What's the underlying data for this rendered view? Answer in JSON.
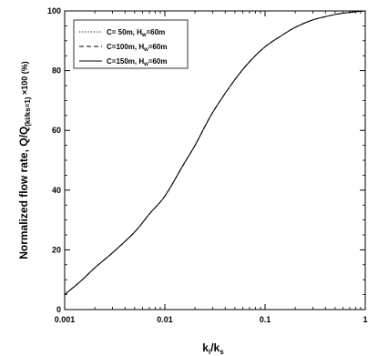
{
  "chart_data": {
    "type": "line",
    "xscale": "log",
    "xlim": [
      0.001,
      1
    ],
    "ylim": [
      0,
      100
    ],
    "xticks": [
      0.001,
      0.01,
      0.1,
      1
    ],
    "xtick_labels": [
      "0.001",
      "0.01",
      "0.1",
      "1"
    ],
    "yticks": [
      0,
      20,
      40,
      60,
      80,
      100
    ],
    "ytick_labels": [
      "0",
      "20",
      "40",
      "60",
      "80",
      "100"
    ],
    "xlabel": {
      "main": "k",
      "sub1": "i",
      "mid": "/k",
      "sub2": "s"
    },
    "ylabel": {
      "main": "Normalized flow rate, Q/Q",
      "sub": "(ki/ks=1)",
      "tail": " ×100 (%)"
    },
    "legend_position": "top-left",
    "series": [
      {
        "name": {
          "pre": "C= 50m, H",
          "sub": "w",
          "post": "=60m"
        },
        "line_style": "dotted",
        "x": [
          0.001,
          0.0015,
          0.002,
          0.003,
          0.005,
          0.007,
          0.01,
          0.015,
          0.02,
          0.03,
          0.05,
          0.07,
          0.1,
          0.15,
          0.2,
          0.3,
          0.5,
          0.7,
          1
        ],
        "y": [
          5,
          10,
          14,
          19,
          26,
          32,
          38,
          48,
          55,
          66,
          77,
          83,
          88,
          92,
          94.5,
          97,
          98.8,
          99.5,
          100
        ]
      },
      {
        "name": {
          "pre": "C=100m, H",
          "sub": "w",
          "post": "=60m"
        },
        "line_style": "dashed",
        "x": [
          0.001,
          0.0015,
          0.002,
          0.003,
          0.005,
          0.007,
          0.01,
          0.015,
          0.02,
          0.03,
          0.05,
          0.07,
          0.1,
          0.15,
          0.2,
          0.3,
          0.5,
          0.7,
          1
        ],
        "y": [
          5,
          10,
          14,
          19,
          26,
          32,
          38,
          48,
          55,
          66,
          77,
          83,
          88,
          92,
          94.5,
          97,
          98.8,
          99.5,
          100
        ]
      },
      {
        "name": {
          "pre": "C=150m, H",
          "sub": "w",
          "post": "=60m"
        },
        "line_style": "solid",
        "x": [
          0.001,
          0.0015,
          0.002,
          0.003,
          0.005,
          0.007,
          0.01,
          0.015,
          0.02,
          0.03,
          0.05,
          0.07,
          0.1,
          0.15,
          0.2,
          0.3,
          0.5,
          0.7,
          1
        ],
        "y": [
          5,
          10,
          14,
          19,
          26,
          32,
          38,
          48,
          55,
          66,
          77,
          83,
          88,
          92,
          94.5,
          97,
          98.8,
          99.5,
          100
        ]
      }
    ]
  }
}
